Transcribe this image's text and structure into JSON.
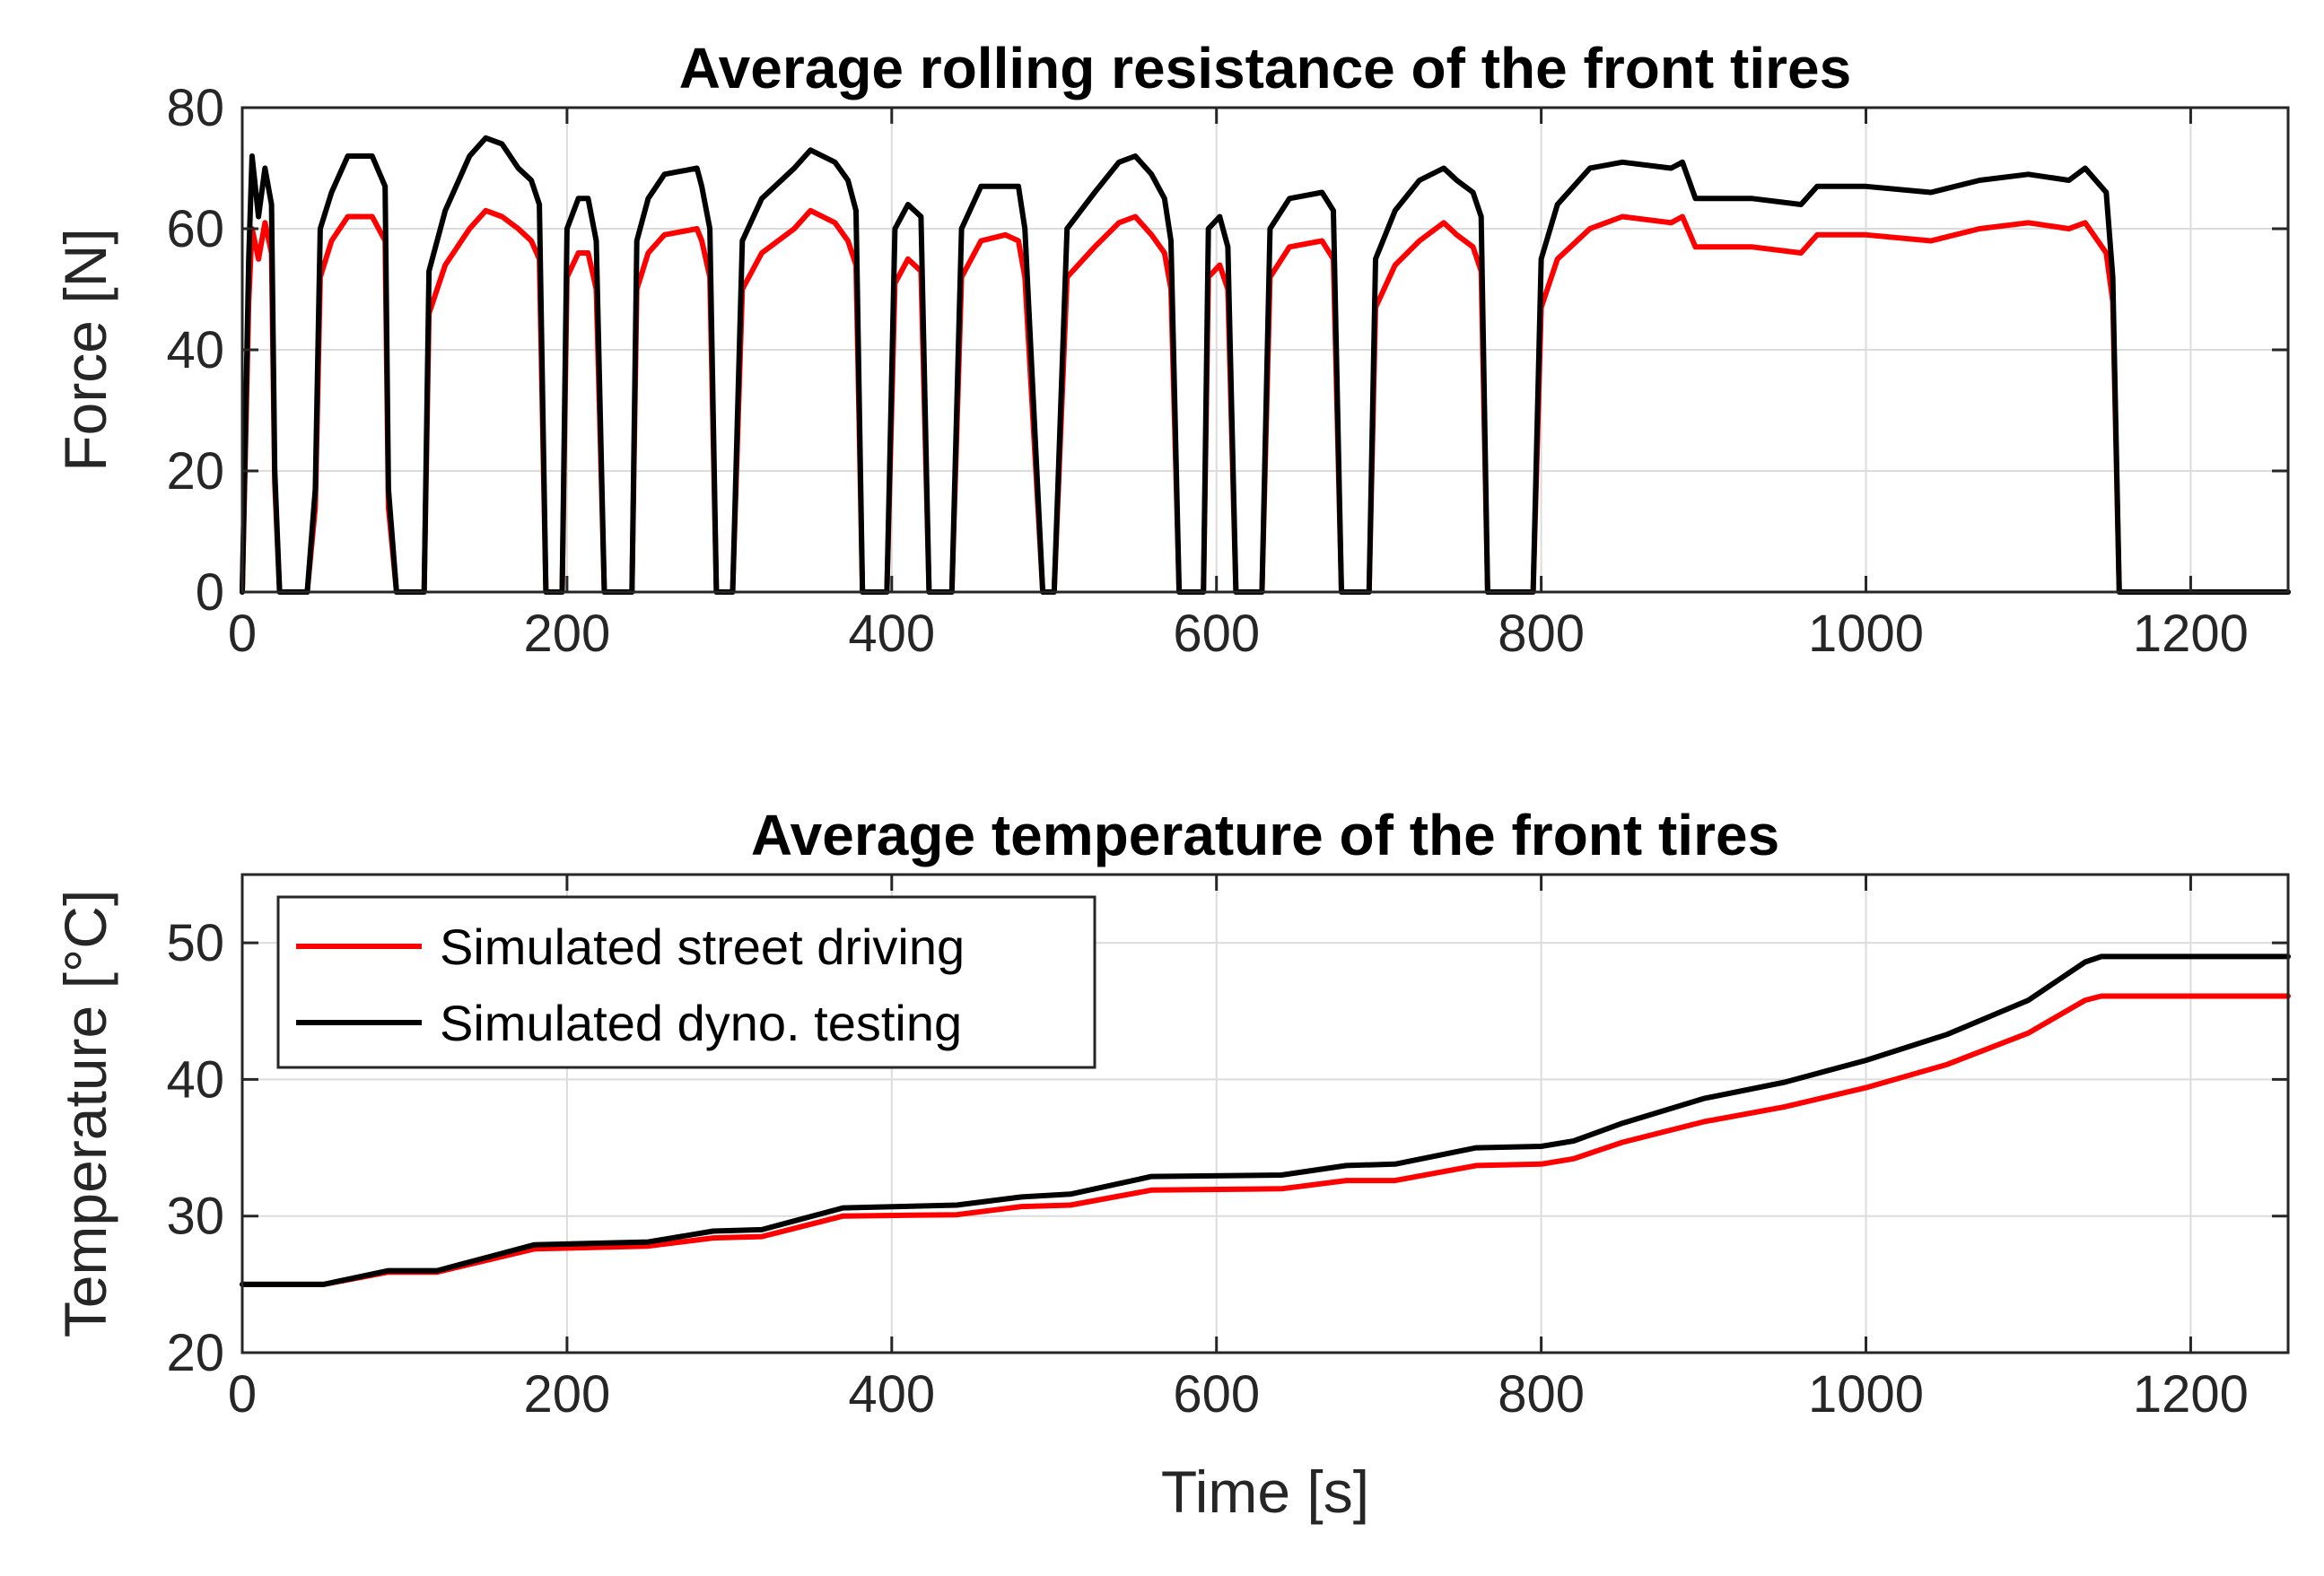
{
  "chart_data": [
    {
      "type": "line",
      "title": "Average rolling resistance of the front tires",
      "xlabel": "",
      "ylabel": "Force [N]",
      "xlim": [
        0,
        1260
      ],
      "ylim": [
        0,
        80
      ],
      "xticks": [
        0,
        200,
        400,
        600,
        800,
        1000,
        1200
      ],
      "yticks": [
        0,
        20,
        40,
        60,
        80
      ],
      "xtick_labels": [
        "0",
        "200",
        "400",
        "600",
        "800",
        "1000",
        "1200"
      ],
      "ytick_labels": [
        "0",
        "20",
        "40",
        "60",
        "80"
      ],
      "grid": true,
      "series": [
        {
          "name": "Simulated street driving",
          "color": "#ff0000",
          "x": [
            0,
            4,
            6,
            10,
            14,
            18,
            20,
            23,
            27,
            40,
            45,
            48,
            55,
            65,
            80,
            88,
            90,
            95,
            112,
            115,
            125,
            140,
            150,
            160,
            170,
            178,
            183,
            187,
            197,
            200,
            207,
            213,
            218,
            223,
            240,
            243,
            250,
            260,
            280,
            283,
            288,
            292,
            302,
            308,
            320,
            340,
            350,
            365,
            373,
            378,
            382,
            397,
            402,
            410,
            418,
            423,
            437,
            443,
            455,
            470,
            478,
            482,
            493,
            500,
            508,
            525,
            540,
            550,
            560,
            568,
            572,
            577,
            592,
            595,
            602,
            607,
            612,
            628,
            633,
            645,
            665,
            672,
            677,
            694,
            698,
            710,
            725,
            740,
            748,
            758,
            763,
            767,
            795,
            800,
            810,
            830,
            850,
            880,
            887,
            895,
            930,
            960,
            970,
            1000,
            1040,
            1070,
            1100,
            1125,
            1135,
            1148,
            1152,
            1156,
            1260
          ],
          "y": [
            0,
            48,
            60,
            55,
            61,
            56,
            18,
            0,
            0,
            0,
            14,
            52,
            58,
            62,
            62,
            58,
            14,
            0,
            0,
            46,
            54,
            60,
            63,
            62,
            60,
            58,
            55,
            0,
            0,
            52,
            56,
            56,
            50,
            0,
            0,
            50,
            56,
            59,
            60,
            58,
            52,
            0,
            0,
            50,
            56,
            60,
            63,
            61,
            58,
            54,
            0,
            0,
            51,
            55,
            53,
            0,
            0,
            52,
            58,
            59,
            58,
            52,
            0,
            0,
            52,
            57,
            61,
            62,
            59,
            56,
            50,
            0,
            0,
            52,
            54,
            50,
            0,
            0,
            52,
            57,
            58,
            55,
            0,
            0,
            47,
            54,
            58,
            61,
            59,
            57,
            53,
            0,
            0,
            47,
            55,
            60,
            62,
            61,
            62,
            57,
            57,
            56,
            59,
            59,
            58,
            60,
            61,
            60,
            61,
            56,
            48,
            0,
            0
          ]
        },
        {
          "name": "Simulated dyno. testing",
          "color": "#000000",
          "x": [
            0,
            4,
            6,
            10,
            14,
            18,
            20,
            23,
            27,
            40,
            45,
            48,
            55,
            65,
            80,
            88,
            90,
            95,
            112,
            115,
            125,
            140,
            150,
            160,
            170,
            178,
            183,
            187,
            197,
            200,
            207,
            213,
            218,
            223,
            240,
            243,
            250,
            260,
            280,
            283,
            288,
            292,
            302,
            308,
            320,
            340,
            350,
            365,
            373,
            378,
            382,
            397,
            402,
            410,
            418,
            423,
            437,
            443,
            455,
            470,
            478,
            482,
            493,
            500,
            508,
            525,
            540,
            550,
            560,
            568,
            572,
            577,
            592,
            595,
            602,
            607,
            612,
            628,
            633,
            645,
            665,
            672,
            677,
            694,
            698,
            710,
            725,
            740,
            748,
            758,
            763,
            767,
            795,
            800,
            810,
            830,
            850,
            880,
            887,
            895,
            930,
            960,
            970,
            1000,
            1040,
            1070,
            1100,
            1125,
            1135,
            1148,
            1152,
            1156,
            1260
          ],
          "y": [
            0,
            55,
            72,
            62,
            70,
            64,
            20,
            0,
            0,
            0,
            17,
            60,
            66,
            72,
            72,
            67,
            17,
            0,
            0,
            53,
            63,
            72,
            75,
            74,
            70,
            68,
            64,
            0,
            0,
            60,
            65,
            65,
            58,
            0,
            0,
            58,
            65,
            69,
            70,
            67,
            60,
            0,
            0,
            58,
            65,
            70,
            73,
            71,
            68,
            63,
            0,
            0,
            60,
            64,
            62,
            0,
            0,
            60,
            67,
            67,
            67,
            60,
            0,
            0,
            60,
            66,
            71,
            72,
            69,
            65,
            58,
            0,
            0,
            60,
            62,
            57,
            0,
            0,
            60,
            65,
            66,
            63,
            0,
            0,
            55,
            63,
            68,
            70,
            68,
            66,
            62,
            0,
            0,
            55,
            64,
            70,
            71,
            70,
            71,
            65,
            65,
            64,
            67,
            67,
            66,
            68,
            69,
            68,
            70,
            66,
            52,
            0,
            0
          ]
        }
      ]
    },
    {
      "type": "line",
      "title": "Average temperature of the front tires",
      "xlabel": "Time [s]",
      "ylabel": "Temperature [°C]",
      "xlim": [
        0,
        1260
      ],
      "ylim": [
        20,
        55
      ],
      "xticks": [
        0,
        200,
        400,
        600,
        800,
        1000,
        1200
      ],
      "yticks": [
        20,
        30,
        40,
        50
      ],
      "xtick_labels": [
        "0",
        "200",
        "400",
        "600",
        "800",
        "1000",
        "1200"
      ],
      "ytick_labels": [
        "20",
        "30",
        "40",
        "50"
      ],
      "grid": true,
      "legend_position": "top-left",
      "series": [
        {
          "name": "Simulated street driving",
          "color": "#ff0000",
          "x": [
            0,
            50,
            90,
            120,
            180,
            250,
            290,
            320,
            370,
            440,
            480,
            510,
            560,
            640,
            680,
            710,
            760,
            800,
            820,
            850,
            900,
            950,
            1000,
            1050,
            1100,
            1135,
            1145,
            1260
          ],
          "y": [
            25,
            25,
            25.9,
            25.9,
            27.6,
            27.8,
            28.4,
            28.5,
            30,
            30.1,
            30.7,
            30.8,
            31.9,
            32,
            32.6,
            32.6,
            33.7,
            33.8,
            34.2,
            35.4,
            36.9,
            38,
            39.4,
            41.1,
            43.4,
            45.8,
            46.1,
            46.1
          ]
        },
        {
          "name": "Simulated dyno. testing",
          "color": "#000000",
          "x": [
            0,
            50,
            90,
            120,
            180,
            250,
            290,
            320,
            370,
            440,
            480,
            510,
            560,
            640,
            680,
            710,
            760,
            800,
            820,
            850,
            900,
            950,
            1000,
            1050,
            1100,
            1135,
            1145,
            1260
          ],
          "y": [
            25,
            25,
            26,
            26,
            27.9,
            28.1,
            28.9,
            29,
            30.6,
            30.8,
            31.4,
            31.6,
            32.9,
            33,
            33.7,
            33.8,
            35,
            35.1,
            35.5,
            36.8,
            38.6,
            39.8,
            41.4,
            43.3,
            45.8,
            48.6,
            49,
            49
          ]
        }
      ]
    }
  ]
}
